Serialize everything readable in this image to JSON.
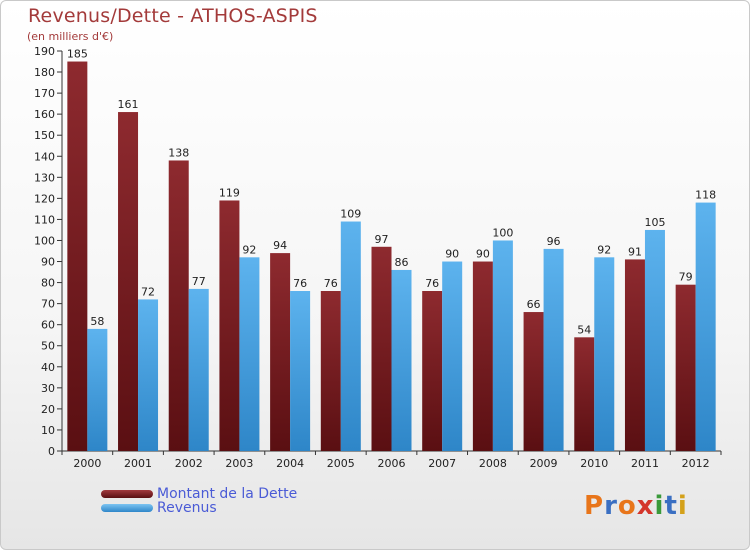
{
  "chart_data": {
    "type": "bar",
    "title": "Revenus/Dette - ATHOS-ASPIS",
    "subtitle": "(en milliers d'€)",
    "categories": [
      "2000",
      "2001",
      "2002",
      "2003",
      "2004",
      "2005",
      "2006",
      "2007",
      "2008",
      "2009",
      "2010",
      "2011",
      "2012"
    ],
    "series": [
      {
        "name": "Montant de la Dette",
        "color": "#7a1e22",
        "values": [
          185,
          161,
          138,
          119,
          94,
          76,
          97,
          76,
          90,
          66,
          54,
          91,
          79
        ]
      },
      {
        "name": "Revenus",
        "color": "#4aa6e6",
        "values": [
          58,
          72,
          77,
          92,
          76,
          109,
          86,
          90,
          100,
          96,
          92,
          105,
          118
        ]
      }
    ],
    "ylim": [
      0,
      190
    ],
    "yticks": [
      0,
      10,
      20,
      30,
      40,
      50,
      60,
      70,
      80,
      90,
      100,
      110,
      120,
      130,
      140,
      150,
      160,
      170,
      180,
      190
    ],
    "grid": false,
    "legend": "bottom-left"
  },
  "legend": {
    "debt_label": "Montant de la Dette",
    "revenue_label": "Revenus"
  },
  "logo": {
    "letters": [
      "P",
      "r",
      "o",
      "x",
      "i",
      "t",
      "i"
    ],
    "colors": [
      "#e8751a",
      "#3a6fc2",
      "#e8751a",
      "#d4352b",
      "#3a9a3a",
      "#3a6fc2",
      "#d4a11a"
    ]
  }
}
